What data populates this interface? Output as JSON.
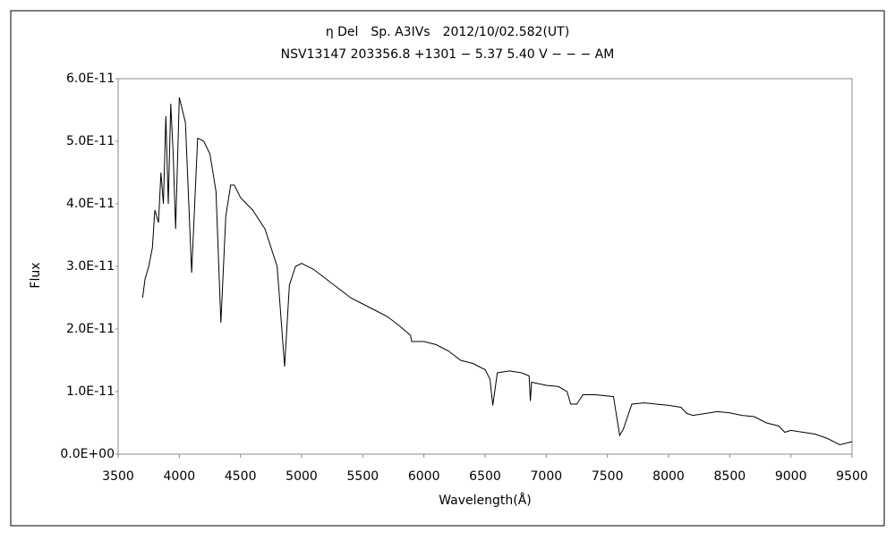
{
  "chart_data": {
    "type": "line",
    "title": "η Del　Sp. A3IVs　2012/10/02.582(UT)",
    "subtitle": "NSV13147 203356.8 +1301 − 5.37 5.40 V − − − AM",
    "x_label": "Wavelength(Å)",
    "y_label": "Flux",
    "xlim": [
      3500,
      9500
    ],
    "xticks": [
      3500,
      4000,
      4500,
      5000,
      5500,
      6000,
      6500,
      7000,
      7500,
      8000,
      8500,
      9000,
      9500
    ],
    "ylim": [
      0,
      6e-11
    ],
    "yticks": [
      {
        "value": 0,
        "label": "0.0E+00"
      },
      {
        "value": 1e-11,
        "label": "1.0E-11"
      },
      {
        "value": 2e-11,
        "label": "2.0E-11"
      },
      {
        "value": 3e-11,
        "label": "3.0E-11"
      },
      {
        "value": 4e-11,
        "label": "4.0E-11"
      },
      {
        "value": 5e-11,
        "label": "5.0E-11"
      },
      {
        "value": 6e-11,
        "label": "6.0E-11"
      }
    ],
    "grid": false,
    "series": [
      {
        "color": "#000000",
        "x": [
          3700,
          3720,
          3750,
          3780,
          3800,
          3830,
          3850,
          3870,
          3890,
          3910,
          3930,
          3950,
          3970,
          4000,
          4050,
          4101,
          4150,
          4200,
          4250,
          4300,
          4340,
          4380,
          4420,
          4450,
          4500,
          4600,
          4700,
          4800,
          4861,
          4900,
          4950,
          5000,
          5100,
          5200,
          5300,
          5400,
          5500,
          5600,
          5700,
          5800,
          5890,
          5900,
          6000,
          6100,
          6200,
          6300,
          6400,
          6500,
          6540,
          6563,
          6600,
          6700,
          6800,
          6860,
          6870,
          6880,
          7000,
          7100,
          7170,
          7200,
          7250,
          7300,
          7400,
          7550,
          7600,
          7630,
          7700,
          7800,
          7900,
          8000,
          8100,
          8150,
          8200,
          8300,
          8400,
          8500,
          8600,
          8700,
          8800,
          8900,
          8950,
          9000,
          9100,
          9200,
          9300,
          9400,
          9500
        ],
        "values": [
          2.5e-11,
          2.8e-11,
          3e-11,
          3.3e-11,
          3.9e-11,
          3.7e-11,
          4.5e-11,
          4e-11,
          5.4e-11,
          4e-11,
          5.6e-11,
          4.8e-11,
          3.6e-11,
          5.7e-11,
          5.3e-11,
          2.9e-11,
          5.05e-11,
          5e-11,
          4.8e-11,
          4.2e-11,
          2.1e-11,
          3.8e-11,
          4.3e-11,
          4.3e-11,
          4.1e-11,
          3.9e-11,
          3.6e-11,
          3e-11,
          1.4e-11,
          2.7e-11,
          3e-11,
          3.05e-11,
          2.95e-11,
          2.8e-11,
          2.65e-11,
          2.5e-11,
          2.4e-11,
          2.3e-11,
          2.2e-11,
          2.05e-11,
          1.9e-11,
          1.8e-11,
          1.8e-11,
          1.75e-11,
          1.65e-11,
          1.5e-11,
          1.45e-11,
          1.35e-11,
          1.2e-11,
          7.8e-12,
          1.3e-11,
          1.33e-11,
          1.3e-11,
          1.25e-11,
          8.5e-12,
          1.15e-11,
          1.1e-11,
          1.08e-11,
          1e-11,
          8e-12,
          8e-12,
          9.5e-12,
          9.5e-12,
          9.2e-12,
          3e-12,
          4e-12,
          8e-12,
          8.2e-12,
          8e-12,
          7.8e-12,
          7.5e-12,
          6.5e-12,
          6.2e-12,
          6.5e-12,
          6.8e-12,
          6.6e-12,
          6.2e-12,
          6e-12,
          5e-12,
          4.5e-12,
          3.5e-12,
          3.8e-12,
          3.5e-12,
          3.2e-12,
          2.5e-12,
          1.5e-12,
          2e-12
        ]
      }
    ]
  }
}
